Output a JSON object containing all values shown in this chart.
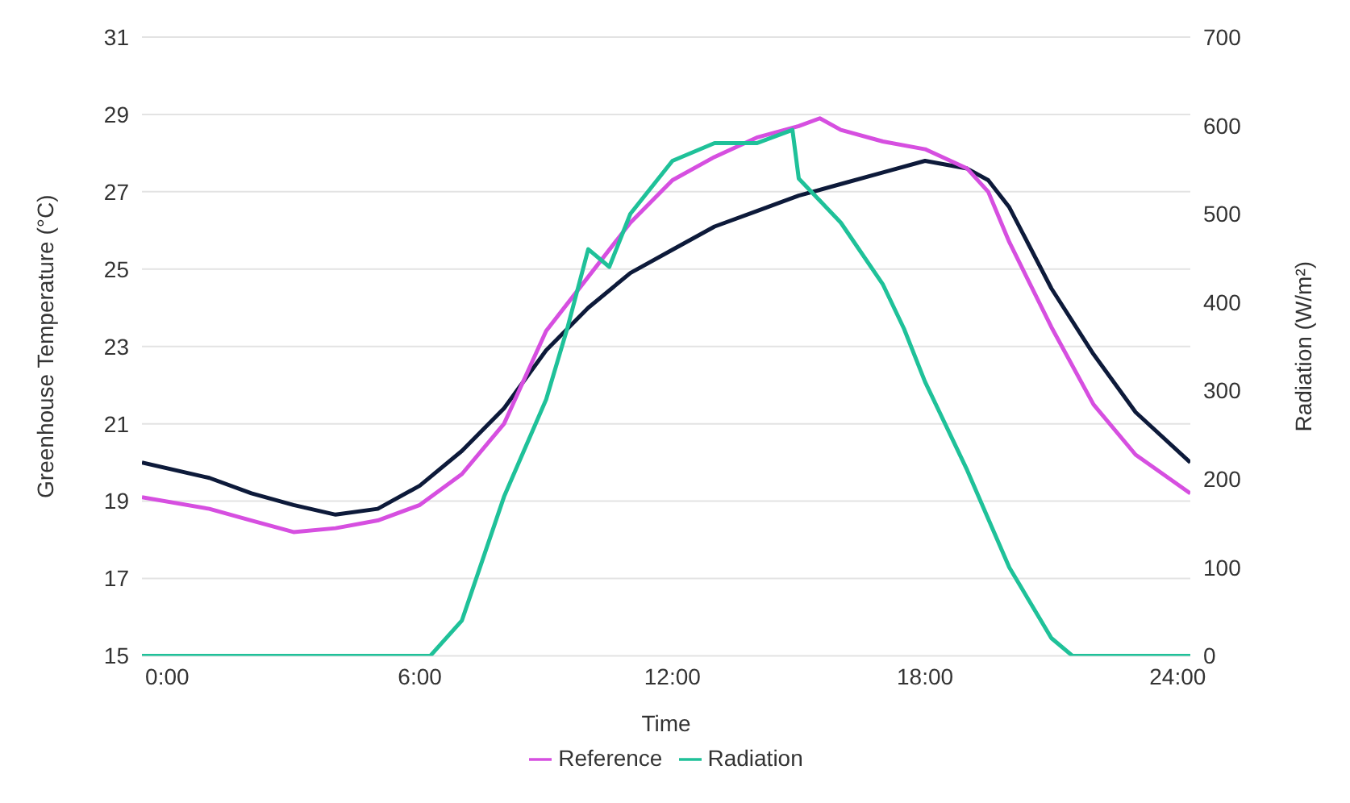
{
  "chart_data": {
    "type": "line",
    "xlabel": "Time",
    "ylabel": "Greenhouse Temperature (°C)",
    "y2label": "Radiation (W/m²)",
    "xlim": [
      -0.6,
      24.3
    ],
    "xticks": [
      {
        "value": 0,
        "label": "0:00"
      },
      {
        "value": 6,
        "label": "6:00"
      },
      {
        "value": 12,
        "label": "12:00"
      },
      {
        "value": 18,
        "label": "18:00"
      },
      {
        "value": 24,
        "label": "24:00"
      }
    ],
    "ylim": [
      15,
      31
    ],
    "yticks": [
      15,
      17,
      19,
      21,
      23,
      25,
      27,
      29,
      31
    ],
    "y2lim": [
      0,
      700
    ],
    "y2ticks": [
      0,
      100,
      200,
      300,
      400,
      500,
      600,
      700
    ],
    "grid": "y",
    "legend": "bottom",
    "marker": "none",
    "line_style": "solid",
    "series": [
      {
        "color": "#0d1a3a",
        "x": [
          -0.6,
          1,
          2,
          3,
          4,
          5,
          6,
          7,
          8,
          9,
          10,
          11,
          12,
          13,
          14,
          15,
          16,
          17,
          18,
          19,
          19.5,
          20,
          21,
          22,
          23,
          24.3
        ],
        "values": [
          20.0,
          19.6,
          19.2,
          18.9,
          18.65,
          18.8,
          19.4,
          20.3,
          21.4,
          22.9,
          24.0,
          24.9,
          25.5,
          26.1,
          26.5,
          26.9,
          27.2,
          27.5,
          27.8,
          27.6,
          27.3,
          26.6,
          24.5,
          22.8,
          21.3,
          20.0
        ]
      },
      {
        "name": "Reference",
        "color": "#d64fe0",
        "x": [
          -0.6,
          1,
          2,
          3,
          4,
          5,
          6,
          7,
          8,
          9,
          10,
          11,
          12,
          13,
          14,
          15,
          15.5,
          16,
          17,
          18,
          19,
          19.5,
          20,
          21,
          22,
          23,
          24.3
        ],
        "values": [
          19.1,
          18.8,
          18.5,
          18.2,
          18.3,
          18.5,
          18.9,
          19.7,
          21.0,
          23.4,
          24.8,
          26.2,
          27.3,
          27.9,
          28.4,
          28.7,
          28.9,
          28.6,
          28.3,
          28.1,
          27.6,
          27.0,
          25.7,
          23.5,
          21.5,
          20.2,
          19.2
        ]
      },
      {
        "name": "Radiation",
        "color": "#1fc199",
        "axis": "y2",
        "x": [
          -0.6,
          6.25,
          7,
          8,
          9,
          9.5,
          10,
          10.5,
          11,
          12,
          13,
          14,
          14.85,
          15,
          16,
          17,
          17.5,
          18,
          19,
          20,
          21,
          21.5,
          24.3
        ],
        "values": [
          0,
          0,
          40,
          180,
          290,
          370,
          460,
          440,
          500,
          560,
          580,
          580,
          595,
          540,
          490,
          420,
          370,
          310,
          210,
          100,
          20,
          0,
          0
        ]
      }
    ]
  }
}
